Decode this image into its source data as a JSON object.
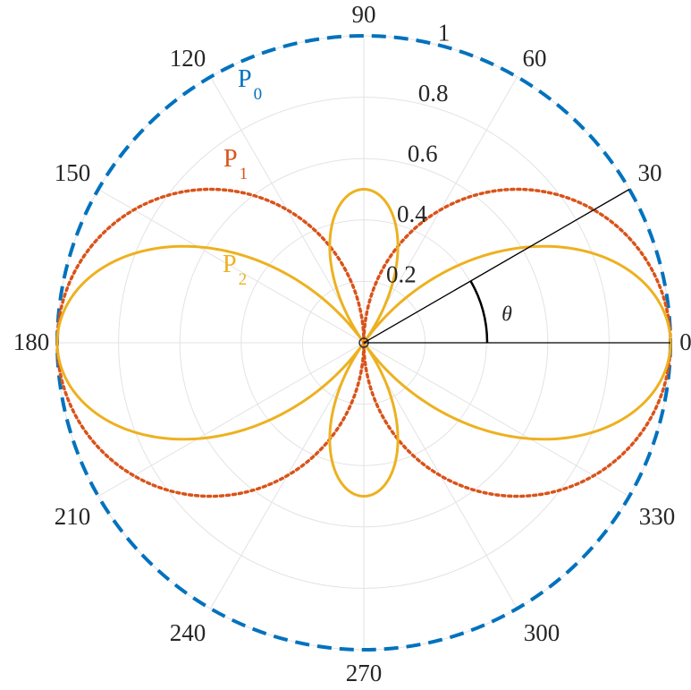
{
  "chart_data": {
    "type": "polar-line",
    "title": "",
    "angle_unit": "degrees",
    "rlim": [
      0,
      1
    ],
    "grid": true,
    "angle_ticks": [
      0,
      30,
      60,
      90,
      120,
      150,
      180,
      210,
      240,
      270,
      300,
      330
    ],
    "angle_tick_labels": [
      "0",
      "30",
      "60",
      "90",
      "120",
      "150",
      "180",
      "210",
      "240",
      "270",
      "300",
      "330"
    ],
    "radial_ticks": [
      0.2,
      0.4,
      0.6,
      0.8,
      1
    ],
    "radial_tick_labels": [
      "0.2",
      "0.4",
      "0.6",
      "0.8",
      "1"
    ],
    "series": [
      {
        "name": "P0",
        "label_main": "P",
        "label_sub": "0",
        "color": "#0072BD",
        "line_style": "dashed",
        "theta_deg": [
          0,
          15,
          30,
          45,
          60,
          75,
          90,
          105,
          120,
          135,
          150,
          165,
          180,
          195,
          210,
          225,
          240,
          255,
          270,
          285,
          300,
          315,
          330,
          345,
          360
        ],
        "r": [
          1,
          1,
          1,
          1,
          1,
          1,
          1,
          1,
          1,
          1,
          1,
          1,
          1,
          1,
          1,
          1,
          1,
          1,
          1,
          1,
          1,
          1,
          1,
          1,
          1
        ]
      },
      {
        "name": "P1",
        "label_main": "P",
        "label_sub": "1",
        "color": "#D95319",
        "line_style": "dotted",
        "theta_deg": [
          0,
          15,
          30,
          45,
          60,
          75,
          90,
          105,
          120,
          135,
          150,
          165,
          180,
          195,
          210,
          225,
          240,
          255,
          270,
          285,
          300,
          315,
          330,
          345,
          360
        ],
        "r": [
          1,
          0.966,
          0.866,
          0.707,
          0.5,
          0.259,
          0,
          0.259,
          0.5,
          0.707,
          0.866,
          0.966,
          1,
          0.966,
          0.866,
          0.707,
          0.5,
          0.259,
          0,
          0.259,
          0.5,
          0.707,
          0.866,
          0.966,
          1
        ]
      },
      {
        "name": "P2",
        "label_main": "P",
        "label_sub": "2",
        "color": "#EDB120",
        "line_style": "solid",
        "theta_deg": [
          0,
          15,
          30,
          45,
          60,
          75,
          90,
          105,
          120,
          135,
          150,
          165,
          180,
          195,
          210,
          225,
          240,
          255,
          270,
          285,
          300,
          315,
          330,
          345,
          360
        ],
        "r": [
          1,
          0.9,
          0.625,
          0.25,
          0.125,
          0.4,
          0.5,
          0.4,
          0.125,
          0.25,
          0.625,
          0.9,
          1,
          0.9,
          0.625,
          0.25,
          0.125,
          0.4,
          0.5,
          0.4,
          0.125,
          0.25,
          0.625,
          0.9,
          1
        ]
      }
    ],
    "annotation": {
      "symbol": "θ",
      "reference_angle_deg": 30
    }
  }
}
